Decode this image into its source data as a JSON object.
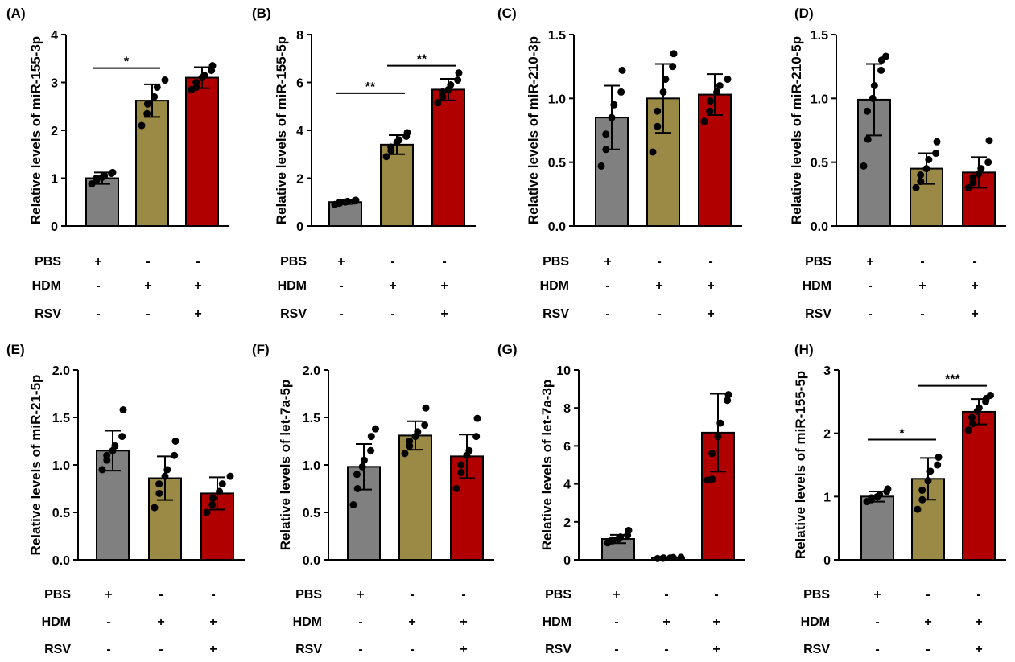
{
  "chart_data": [
    {
      "panel": "(A)",
      "type": "bar",
      "ylabel": "Relative levels of miR-155-3p",
      "ylim": [
        0,
        4
      ],
      "yticks": [
        "0",
        "1",
        "2",
        "3",
        "4"
      ],
      "bars": [
        {
          "mean": 1.0,
          "sd": 0.12,
          "points": [
            0.88,
            0.95,
            1.0,
            1.02,
            1.05,
            1.1,
            1.12
          ]
        },
        {
          "mean": 2.62,
          "sd": 0.34,
          "points": [
            2.1,
            2.35,
            2.55,
            2.7,
            2.9,
            3.05
          ]
        },
        {
          "mean": 3.1,
          "sd": 0.22,
          "points": [
            2.85,
            2.9,
            3.0,
            3.1,
            3.15,
            3.25,
            3.35
          ]
        }
      ],
      "colors": [
        "#808080",
        "#9a8a46",
        "#b00000"
      ],
      "significance": [
        {
          "from": 0,
          "to": 1,
          "label": "*",
          "y": 3.3
        }
      ],
      "treatments": [
        {
          "name": "PBS",
          "values": [
            "+",
            "-",
            "-"
          ]
        },
        {
          "name": "HDM",
          "values": [
            "-",
            "+",
            "+"
          ]
        },
        {
          "name": "RSV",
          "values": [
            "-",
            "-",
            "+"
          ]
        }
      ]
    },
    {
      "panel": "(B)",
      "type": "bar",
      "ylabel": "Relative levels of miR-155-5p",
      "ylim": [
        0,
        8
      ],
      "yticks": [
        "0",
        "2",
        "4",
        "6",
        "8"
      ],
      "bars": [
        {
          "mean": 1.0,
          "sd": 0.08,
          "points": [
            0.9,
            0.95,
            0.98,
            1.0,
            1.03,
            1.05,
            1.08
          ]
        },
        {
          "mean": 3.4,
          "sd": 0.4,
          "points": [
            2.9,
            3.15,
            3.3,
            3.5,
            3.6,
            3.75,
            3.9
          ]
        },
        {
          "mean": 5.7,
          "sd": 0.45,
          "points": [
            5.15,
            5.4,
            5.6,
            5.7,
            5.9,
            6.1,
            6.4
          ]
        }
      ],
      "colors": [
        "#808080",
        "#9a8a46",
        "#b00000"
      ],
      "significance": [
        {
          "from": 0,
          "to": 1,
          "label": "**",
          "y": 5.55
        },
        {
          "from": 1,
          "to": 2,
          "label": "**",
          "y": 6.7
        }
      ],
      "treatments": [
        {
          "name": "PBS",
          "values": [
            "+",
            "-",
            "-"
          ]
        },
        {
          "name": "HDM",
          "values": [
            "-",
            "+",
            "+"
          ]
        },
        {
          "name": "RSV",
          "values": [
            "-",
            "-",
            "+"
          ]
        }
      ]
    },
    {
      "panel": "(C)",
      "type": "bar",
      "ylabel": "Relative levels of miR-210-3p",
      "ylim": [
        0,
        1.5
      ],
      "yticks": [
        "0.0",
        "0.5",
        "1.0",
        "1.5"
      ],
      "bars": [
        {
          "mean": 0.85,
          "sd": 0.25,
          "points": [
            0.47,
            0.6,
            0.72,
            0.85,
            0.95,
            1.05,
            1.22
          ]
        },
        {
          "mean": 1.0,
          "sd": 0.27,
          "points": [
            0.58,
            0.78,
            0.9,
            1.05,
            1.15,
            1.25,
            1.35
          ]
        },
        {
          "mean": 1.03,
          "sd": 0.16,
          "points": [
            0.82,
            0.9,
            0.98,
            1.05,
            1.1,
            1.15
          ]
        }
      ],
      "colors": [
        "#808080",
        "#9a8a46",
        "#b00000"
      ],
      "significance": [],
      "treatments": [
        {
          "name": "PBS",
          "values": [
            "+",
            "-",
            "-"
          ]
        },
        {
          "name": "HDM",
          "values": [
            "-",
            "+",
            "+"
          ]
        },
        {
          "name": "RSV",
          "values": [
            "-",
            "-",
            "+"
          ]
        }
      ]
    },
    {
      "panel": "(D)",
      "type": "bar",
      "ylabel": "Relative levels of miR-210-5p",
      "ylim": [
        0,
        1.5
      ],
      "yticks": [
        "0.0",
        "0.5",
        "1.0",
        "1.5"
      ],
      "bars": [
        {
          "mean": 0.99,
          "sd": 0.28,
          "points": [
            0.47,
            0.68,
            0.9,
            1.0,
            1.1,
            1.22,
            1.3,
            1.33
          ]
        },
        {
          "mean": 0.45,
          "sd": 0.12,
          "points": [
            0.3,
            0.35,
            0.4,
            0.45,
            0.52,
            0.57,
            0.66
          ]
        },
        {
          "mean": 0.42,
          "sd": 0.12,
          "points": [
            0.3,
            0.34,
            0.38,
            0.41,
            0.45,
            0.5,
            0.67
          ]
        }
      ],
      "colors": [
        "#808080",
        "#9a8a46",
        "#b00000"
      ],
      "significance": [],
      "treatments": [
        {
          "name": "PBS",
          "values": [
            "+",
            "-",
            "-"
          ]
        },
        {
          "name": "HDM",
          "values": [
            "-",
            "+",
            "+"
          ]
        },
        {
          "name": "RSV",
          "values": [
            "-",
            "-",
            "+"
          ]
        }
      ]
    },
    {
      "panel": "(E)",
      "type": "bar",
      "ylabel": "Relative levels of miR-21-5p",
      "ylim": [
        0,
        2.0
      ],
      "yticks": [
        "0.0",
        "0.5",
        "1.0",
        "1.5",
        "2.0"
      ],
      "bars": [
        {
          "mean": 1.15,
          "sd": 0.21,
          "points": [
            0.95,
            1.05,
            1.1,
            1.15,
            1.2,
            1.3,
            1.58
          ]
        },
        {
          "mean": 0.86,
          "sd": 0.23,
          "points": [
            0.55,
            0.7,
            0.8,
            0.88,
            0.95,
            1.1,
            1.25
          ]
        },
        {
          "mean": 0.7,
          "sd": 0.17,
          "points": [
            0.5,
            0.58,
            0.65,
            0.72,
            0.8,
            0.88
          ]
        }
      ],
      "colors": [
        "#808080",
        "#9a8a46",
        "#b00000"
      ],
      "significance": [],
      "treatments": [
        {
          "name": "PBS",
          "values": [
            "+",
            "-",
            "-"
          ]
        },
        {
          "name": "HDM",
          "values": [
            "-",
            "+",
            "+"
          ]
        },
        {
          "name": "RSV",
          "values": [
            "-",
            "-",
            "+"
          ]
        }
      ]
    },
    {
      "panel": "(F)",
      "type": "bar",
      "ylabel": "Relative levels of let-7a-5p",
      "ylim": [
        0,
        2.0
      ],
      "yticks": [
        "0.0",
        "0.5",
        "1.0",
        "1.5",
        "2.0"
      ],
      "bars": [
        {
          "mean": 0.98,
          "sd": 0.24,
          "points": [
            0.58,
            0.75,
            0.9,
            0.98,
            1.05,
            1.15,
            1.3,
            1.38
          ]
        },
        {
          "mean": 1.31,
          "sd": 0.15,
          "points": [
            1.12,
            1.2,
            1.25,
            1.3,
            1.35,
            1.42,
            1.6
          ]
        },
        {
          "mean": 1.09,
          "sd": 0.23,
          "points": [
            0.75,
            0.92,
            1.0,
            1.1,
            1.15,
            1.3,
            1.49
          ]
        }
      ],
      "colors": [
        "#808080",
        "#9a8a46",
        "#b00000"
      ],
      "significance": [],
      "treatments": [
        {
          "name": "PBS",
          "values": [
            "+",
            "-",
            "-"
          ]
        },
        {
          "name": "HDM",
          "values": [
            "-",
            "+",
            "+"
          ]
        },
        {
          "name": "RSV",
          "values": [
            "-",
            "-",
            "+"
          ]
        }
      ]
    },
    {
      "panel": "(G)",
      "type": "bar",
      "ylabel": "Relative levels of let-7a-3p",
      "ylim": [
        0,
        10
      ],
      "yticks": [
        "0",
        "2",
        "4",
        "6",
        "8",
        "10"
      ],
      "bars": [
        {
          "mean": 1.1,
          "sd": 0.22,
          "points": [
            0.9,
            1.0,
            1.05,
            1.1,
            1.2,
            1.3,
            1.55
          ]
        },
        {
          "mean": 0.1,
          "sd": 0.03,
          "points": [
            0.07,
            0.08,
            0.1,
            0.1,
            0.12,
            0.13
          ]
        },
        {
          "mean": 6.7,
          "sd": 2.05,
          "points": [
            4.2,
            4.25,
            5.6,
            6.5,
            7.2,
            8.4,
            8.7
          ]
        }
      ],
      "colors": [
        "#808080",
        "#9a8a46",
        "#b00000"
      ],
      "significance": [],
      "treatments": [
        {
          "name": "PBS",
          "values": [
            "+",
            "-",
            "-"
          ]
        },
        {
          "name": "HDM",
          "values": [
            "-",
            "+",
            "+"
          ]
        },
        {
          "name": "RSV",
          "values": [
            "-",
            "-",
            "+"
          ]
        }
      ]
    },
    {
      "panel": "(H)",
      "type": "bar",
      "ylabel": "Relative levels of miR-155-5p",
      "ylim": [
        0,
        3
      ],
      "yticks": [
        "0",
        "1",
        "2",
        "3"
      ],
      "bars": [
        {
          "mean": 1.0,
          "sd": 0.08,
          "points": [
            0.92,
            0.95,
            0.98,
            1.0,
            1.03,
            1.08,
            1.12
          ]
        },
        {
          "mean": 1.28,
          "sd": 0.33,
          "points": [
            0.8,
            0.95,
            1.1,
            1.25,
            1.4,
            1.5,
            1.62
          ]
        },
        {
          "mean": 2.34,
          "sd": 0.2,
          "points": [
            2.05,
            2.15,
            2.25,
            2.35,
            2.4,
            2.5,
            2.55,
            2.6
          ]
        }
      ],
      "colors": [
        "#808080",
        "#9a8a46",
        "#b00000"
      ],
      "significance": [
        {
          "from": 0,
          "to": 1,
          "label": "*",
          "y": 1.9
        },
        {
          "from": 1,
          "to": 2,
          "label": "***",
          "y": 2.75
        }
      ],
      "treatments": [
        {
          "name": "PBS",
          "values": [
            "+",
            "-",
            "-"
          ]
        },
        {
          "name": "HDM",
          "values": [
            "-",
            "+",
            "+"
          ]
        },
        {
          "name": "RSV",
          "values": [
            "-",
            "-",
            "+"
          ]
        }
      ]
    }
  ]
}
